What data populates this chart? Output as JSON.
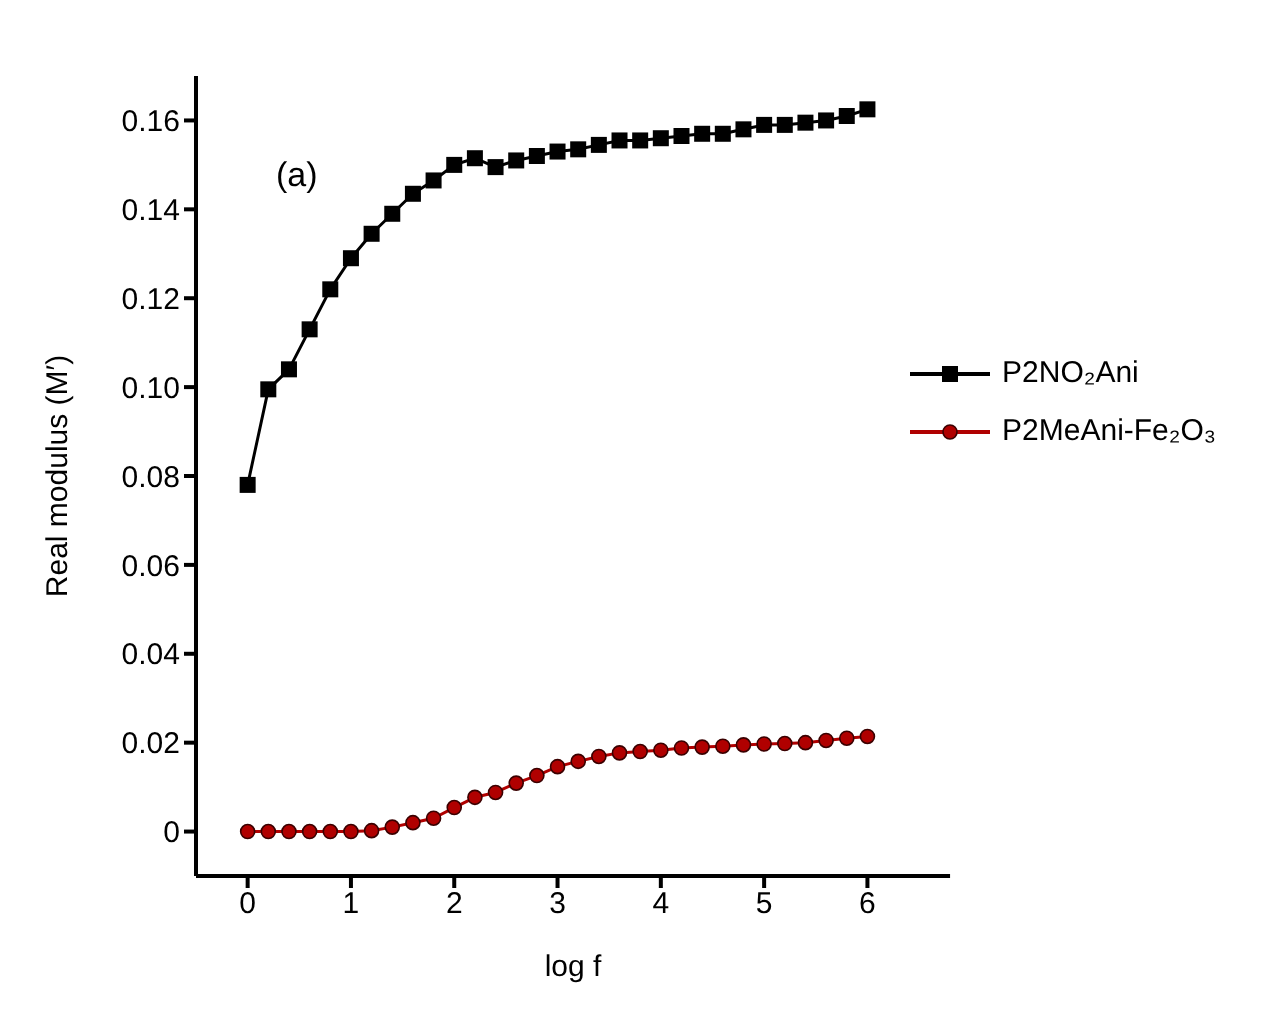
{
  "chart_data": {
    "type": "line",
    "xlabel": "log f",
    "ylabel": "Real modulus (M′)",
    "annotations": [
      "(a)"
    ],
    "x": [
      0,
      0.2,
      0.4,
      0.6,
      0.8,
      1,
      1.2,
      1.4,
      1.6,
      1.8,
      2,
      2.2,
      2.4,
      2.6,
      2.8,
      3,
      3.2,
      3.4,
      3.6,
      3.8,
      4,
      4.2,
      4.4,
      4.6,
      4.8,
      5,
      5.2,
      5.4,
      5.6,
      5.8,
      6
    ],
    "series": [
      {
        "name": "P2NO₂Ani",
        "color": "#000000",
        "marker": "square",
        "values": [
          0.078,
          0.0995,
          0.104,
          0.113,
          0.122,
          0.129,
          0.1345,
          0.139,
          0.1435,
          0.1465,
          0.15,
          0.1515,
          0.1495,
          0.151,
          0.152,
          0.153,
          0.1535,
          0.1545,
          0.1555,
          0.1555,
          0.156,
          0.1565,
          0.157,
          0.157,
          0.158,
          0.159,
          0.159,
          0.1595,
          0.16,
          0.161,
          0.1625
        ]
      },
      {
        "name": "P2MeAni-Fe₂O₃",
        "color": "#b00000",
        "marker": "circle",
        "values": [
          0,
          0,
          0,
          0,
          0,
          0,
          0.0002,
          0.001,
          0.002,
          0.003,
          0.0054,
          0.0077,
          0.0088,
          0.0109,
          0.0126,
          0.0146,
          0.0158,
          0.0169,
          0.0177,
          0.018,
          0.0183,
          0.0188,
          0.019,
          0.0192,
          0.0195,
          0.0197,
          0.0198,
          0.02,
          0.0205,
          0.021,
          0.0214
        ]
      }
    ],
    "xlim": [
      -0.5,
      6.8
    ],
    "xticks": [
      0,
      1,
      2,
      3,
      4,
      5,
      6
    ],
    "ylim": [
      -0.01,
      0.17
    ],
    "yticks": [
      0,
      0.02,
      0.04,
      0.06,
      0.08,
      {
        "value": 0.1,
        "label": "0.10"
      },
      0.12,
      0.14,
      0.16
    ],
    "grid": false,
    "legend": "right"
  }
}
